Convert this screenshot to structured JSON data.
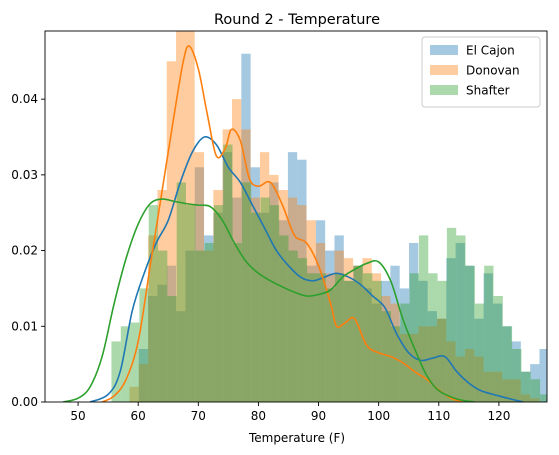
{
  "chart_data": {
    "type": "histogram-kde",
    "title": "Round 2 - Temperature",
    "xlabel": "Temperature (F)",
    "ylabel": "",
    "xlim": [
      44.5,
      128
    ],
    "ylim": [
      0,
      0.049
    ],
    "xticks": [
      50,
      60,
      70,
      80,
      90,
      100,
      110,
      120
    ],
    "yticks": [
      0.0,
      0.01,
      0.02,
      0.03,
      0.04
    ],
    "ytick_labels": [
      "0.00",
      "0.01",
      "0.02",
      "0.03",
      "0.04"
    ],
    "legend_position": "top-right",
    "series": [
      {
        "name": "El Cajon",
        "color": "#1f77b4",
        "bin_start": 57,
        "bin_width": 1.55,
        "hist": [
          0.0,
          0.0,
          0.007,
          0.014,
          0.0155,
          0.018,
          0.012,
          0.02,
          0.031,
          0.022,
          0.025,
          0.033,
          0.027,
          0.046,
          0.031,
          0.025,
          0.029,
          0.024,
          0.033,
          0.032,
          0.018,
          0.024,
          0.02,
          0.022,
          0.016,
          0.018,
          0.015,
          0.013,
          0.016,
          0.018,
          0.015,
          0.021,
          0.016,
          0.012,
          0.011,
          0.019,
          0.021,
          0.018,
          0.011,
          0.017,
          0.013,
          0.01,
          0.008,
          0.004,
          0.005,
          0.007,
          0.003,
          0.004,
          0.0025,
          0.0015
        ],
        "kde": [
          [
            52,
            0.0
          ],
          [
            55,
            0.001
          ],
          [
            57,
            0.004
          ],
          [
            59,
            0.012
          ],
          [
            61,
            0.017
          ],
          [
            63,
            0.021
          ],
          [
            65,
            0.024
          ],
          [
            67,
            0.029
          ],
          [
            69,
            0.033
          ],
          [
            71,
            0.035
          ],
          [
            73,
            0.034
          ],
          [
            75,
            0.031
          ],
          [
            77,
            0.029
          ],
          [
            79,
            0.026
          ],
          [
            81,
            0.023
          ],
          [
            83,
            0.02
          ],
          [
            85,
            0.018
          ],
          [
            87,
            0.0165
          ],
          [
            89,
            0.016
          ],
          [
            91,
            0.0165
          ],
          [
            93,
            0.017
          ],
          [
            95,
            0.0165
          ],
          [
            97,
            0.0155
          ],
          [
            99,
            0.014
          ],
          [
            101,
            0.0125
          ],
          [
            103,
            0.009
          ],
          [
            105,
            0.0065
          ],
          [
            107,
            0.0055
          ],
          [
            109,
            0.0058
          ],
          [
            111,
            0.006
          ],
          [
            113,
            0.004
          ],
          [
            115,
            0.0025
          ],
          [
            117,
            0.0015
          ],
          [
            120,
            0.0008
          ],
          [
            124,
            0.0
          ]
        ]
      },
      {
        "name": "Donovan",
        "color": "#ff7f0e",
        "bin_start": 57,
        "bin_width": 1.55,
        "hist": [
          0.0,
          0.002,
          0.005,
          0.022,
          0.028,
          0.045,
          0.058,
          0.052,
          0.033,
          0.02,
          0.028,
          0.036,
          0.04,
          0.036,
          0.027,
          0.033,
          0.03,
          0.028,
          0.027,
          0.026,
          0.024,
          0.021,
          0.017,
          0.02,
          0.019,
          0.018,
          0.019,
          0.017,
          0.014,
          0.013,
          0.009,
          0.009,
          0.01,
          0.01,
          0.011,
          0.008,
          0.006,
          0.007,
          0.006,
          0.004,
          0.004,
          0.003,
          0.003,
          0.001,
          0.0005,
          0.0,
          0.0,
          0.0,
          0.0,
          0.0
        ],
        "kde": [
          [
            54,
            0.0
          ],
          [
            56,
            0.0008
          ],
          [
            58,
            0.003
          ],
          [
            60,
            0.008
          ],
          [
            62,
            0.018
          ],
          [
            64,
            0.028
          ],
          [
            66,
            0.038
          ],
          [
            67.5,
            0.045
          ],
          [
            68.5,
            0.047
          ],
          [
            70,
            0.044
          ],
          [
            71.5,
            0.038
          ],
          [
            73,
            0.0325
          ],
          [
            74.5,
            0.0335
          ],
          [
            75.5,
            0.036
          ],
          [
            77,
            0.0345
          ],
          [
            78.5,
            0.0295
          ],
          [
            80,
            0.0285
          ],
          [
            82,
            0.029
          ],
          [
            84,
            0.026
          ],
          [
            86,
            0.022
          ],
          [
            88,
            0.021
          ],
          [
            90,
            0.018
          ],
          [
            92,
            0.013
          ],
          [
            93,
            0.01
          ],
          [
            94.5,
            0.0105
          ],
          [
            96,
            0.011
          ],
          [
            98,
            0.0075
          ],
          [
            100,
            0.0065
          ],
          [
            102,
            0.006
          ],
          [
            104,
            0.0052
          ],
          [
            106,
            0.004
          ],
          [
            108,
            0.003
          ],
          [
            110,
            0.0016
          ],
          [
            112,
            0.0005
          ],
          [
            114,
            0.0
          ]
        ]
      },
      {
        "name": "Shafter",
        "color": "#2ca02c",
        "bin_start": 54,
        "bin_width": 1.55,
        "hist": [
          0.0,
          0.008,
          0.01,
          0.0105,
          0.015,
          0.026,
          0.02,
          0.014,
          0.029,
          0.026,
          0.02,
          0.021,
          0.026,
          0.034,
          0.021,
          0.029,
          0.025,
          0.027,
          0.026,
          0.022,
          0.02,
          0.019,
          0.017,
          0.017,
          0.015,
          0.017,
          0.016,
          0.018,
          0.017,
          0.016,
          0.012,
          0.01,
          0.013,
          0.017,
          0.022,
          0.017,
          0.016,
          0.023,
          0.022,
          0.018,
          0.013,
          0.018,
          0.014,
          0.01,
          0.007,
          0.004,
          0.003,
          0.001,
          0.0,
          0.0
        ],
        "kde": [
          [
            47.5,
            0.0
          ],
          [
            50,
            0.0005
          ],
          [
            52,
            0.002
          ],
          [
            54,
            0.006
          ],
          [
            56,
            0.013
          ],
          [
            58,
            0.019
          ],
          [
            60,
            0.0235
          ],
          [
            62,
            0.0262
          ],
          [
            64,
            0.0268
          ],
          [
            66,
            0.0265
          ],
          [
            68,
            0.0262
          ],
          [
            70,
            0.026
          ],
          [
            72,
            0.0258
          ],
          [
            74,
            0.024
          ],
          [
            76,
            0.021
          ],
          [
            78,
            0.0185
          ],
          [
            80,
            0.017
          ],
          [
            82,
            0.016
          ],
          [
            84,
            0.0152
          ],
          [
            86,
            0.0145
          ],
          [
            88,
            0.014
          ],
          [
            90,
            0.0142
          ],
          [
            92,
            0.0148
          ],
          [
            94,
            0.0165
          ],
          [
            96,
            0.0175
          ],
          [
            98,
            0.0183
          ],
          [
            100,
            0.0185
          ],
          [
            102,
            0.016
          ],
          [
            104,
            0.011
          ],
          [
            106,
            0.007
          ],
          [
            108,
            0.0035
          ],
          [
            110,
            0.0015
          ],
          [
            113,
            0.0004
          ],
          [
            116,
            0.0
          ]
        ]
      }
    ]
  }
}
